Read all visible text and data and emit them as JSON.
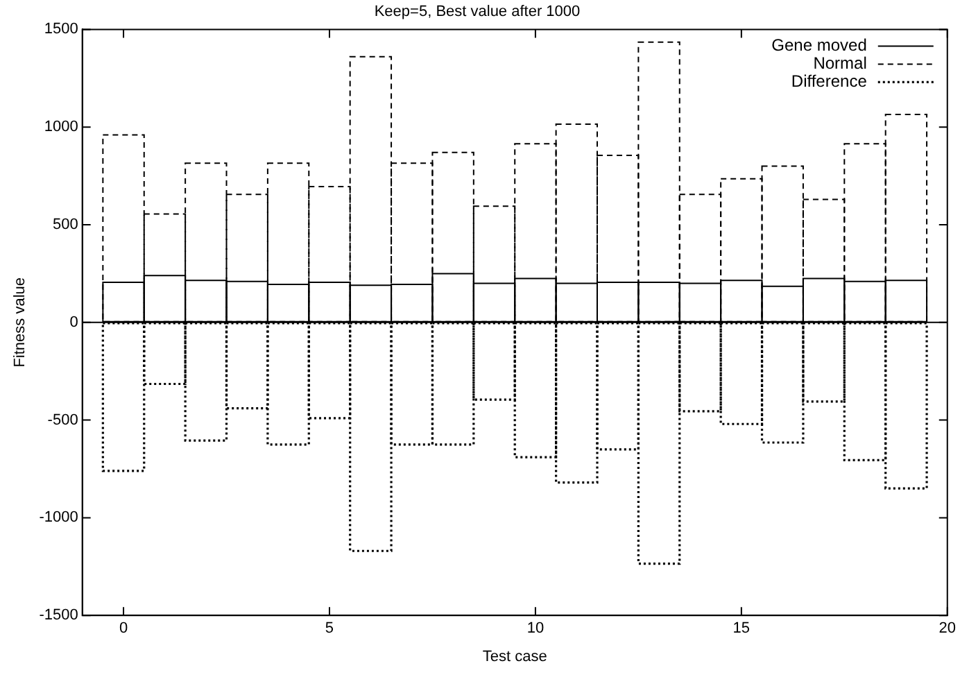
{
  "chart_data": {
    "type": "bar",
    "title": "Keep=5, Best value after 1000",
    "xlabel": "Test case",
    "ylabel": "Fitness value",
    "x": [
      0,
      1,
      2,
      3,
      4,
      5,
      6,
      7,
      8,
      9,
      10,
      11,
      12,
      13,
      14,
      15,
      16,
      17,
      18,
      19
    ],
    "series": [
      {
        "name": "Gene moved",
        "color": "#000000",
        "line_style": "solid",
        "values": [
          205,
          240,
          215,
          210,
          195,
          205,
          190,
          195,
          250,
          200,
          225,
          200,
          205,
          205,
          200,
          215,
          185,
          225,
          210,
          215
        ]
      },
      {
        "name": "Normal",
        "color": "#000000",
        "line_style": "dashed",
        "values": [
          960,
          555,
          815,
          655,
          815,
          695,
          1360,
          815,
          870,
          595,
          915,
          1015,
          855,
          1435,
          655,
          735,
          800,
          630,
          915,
          1065
        ]
      },
      {
        "name": "Difference",
        "color": "#000000",
        "line_style": "dotted",
        "values": [
          -760,
          -315,
          -605,
          -440,
          -625,
          -490,
          -1170,
          -625,
          -625,
          -395,
          -690,
          -820,
          -650,
          -1235,
          -455,
          -520,
          -615,
          -405,
          -705,
          -850
        ]
      }
    ],
    "xlim": [
      -1,
      20
    ],
    "xticks": [
      0,
      5,
      10,
      15,
      20
    ],
    "ylim": [
      -1500,
      1500
    ],
    "yticks": [
      -1500,
      -1000,
      -500,
      0,
      500,
      1000,
      1500
    ],
    "ref_lines": [
      {
        "axis": "y",
        "value": 0,
        "color": "#000000",
        "line_style": "solid"
      }
    ],
    "grid": false,
    "legend": "top right"
  }
}
